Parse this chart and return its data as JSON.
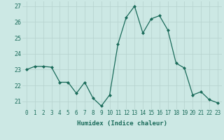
{
  "x": [
    0,
    1,
    2,
    3,
    4,
    5,
    6,
    7,
    8,
    9,
    10,
    11,
    12,
    13,
    14,
    15,
    16,
    17,
    18,
    19,
    20,
    21,
    22,
    23
  ],
  "y": [
    23.0,
    23.2,
    23.2,
    23.15,
    22.2,
    22.2,
    21.5,
    22.2,
    21.2,
    20.7,
    21.4,
    24.6,
    26.3,
    27.0,
    25.3,
    26.2,
    26.4,
    25.5,
    23.4,
    23.1,
    21.4,
    21.6,
    21.1,
    20.9
  ],
  "line_color": "#1a6b5a",
  "marker": "D",
  "marker_size": 2.0,
  "bg_color": "#cce8e4",
  "grid_color": "#b8d4d0",
  "xlabel": "Humidex (Indice chaleur)",
  "ylim": [
    20.5,
    27.3
  ],
  "yticks": [
    21,
    22,
    23,
    24,
    25,
    26,
    27
  ],
  "xticks": [
    0,
    1,
    2,
    3,
    4,
    5,
    6,
    7,
    8,
    9,
    10,
    11,
    12,
    13,
    14,
    15,
    16,
    17,
    18,
    19,
    20,
    21,
    22,
    23
  ],
  "tick_color": "#1a6b5a",
  "label_fontsize": 5.5,
  "ylabel_fontsize": 6,
  "xlabel_fontsize": 6.5
}
